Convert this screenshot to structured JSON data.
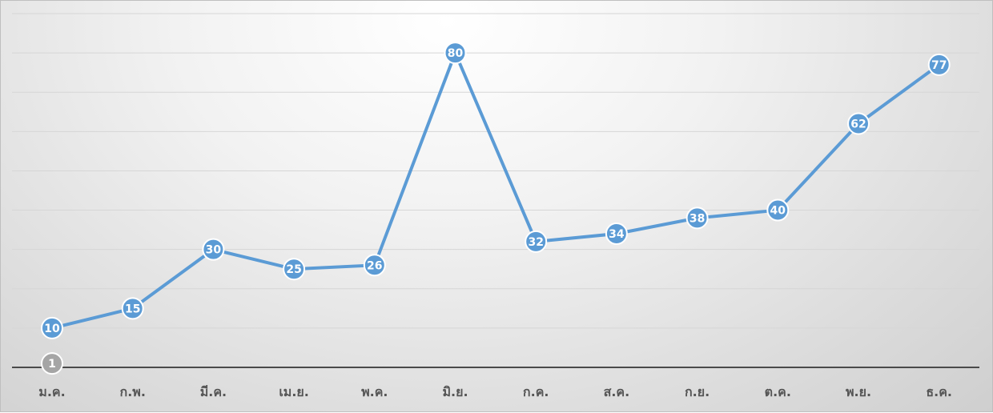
{
  "chart_data": {
    "type": "line",
    "categories": [
      "ม.ค.",
      "ก.พ.",
      "มี.ค.",
      "เม.ย.",
      "พ.ค.",
      "มิ.ย.",
      "ก.ค.",
      "ส.ค.",
      "ก.ย.",
      "ต.ค.",
      "พ.ย.",
      "ธ.ค."
    ],
    "series": [
      {
        "values": [
          10,
          15,
          30,
          25,
          26,
          80,
          32,
          34,
          38,
          40,
          62,
          77
        ],
        "color": "#5b9bd5"
      },
      {
        "values": [
          1,
          null,
          null,
          null,
          null,
          null,
          null,
          null,
          null,
          null,
          null,
          null
        ],
        "color": "#a5a5a5"
      }
    ],
    "ylim": [
      0,
      90
    ],
    "grid": true,
    "legend": "none",
    "data_labels": true
  }
}
